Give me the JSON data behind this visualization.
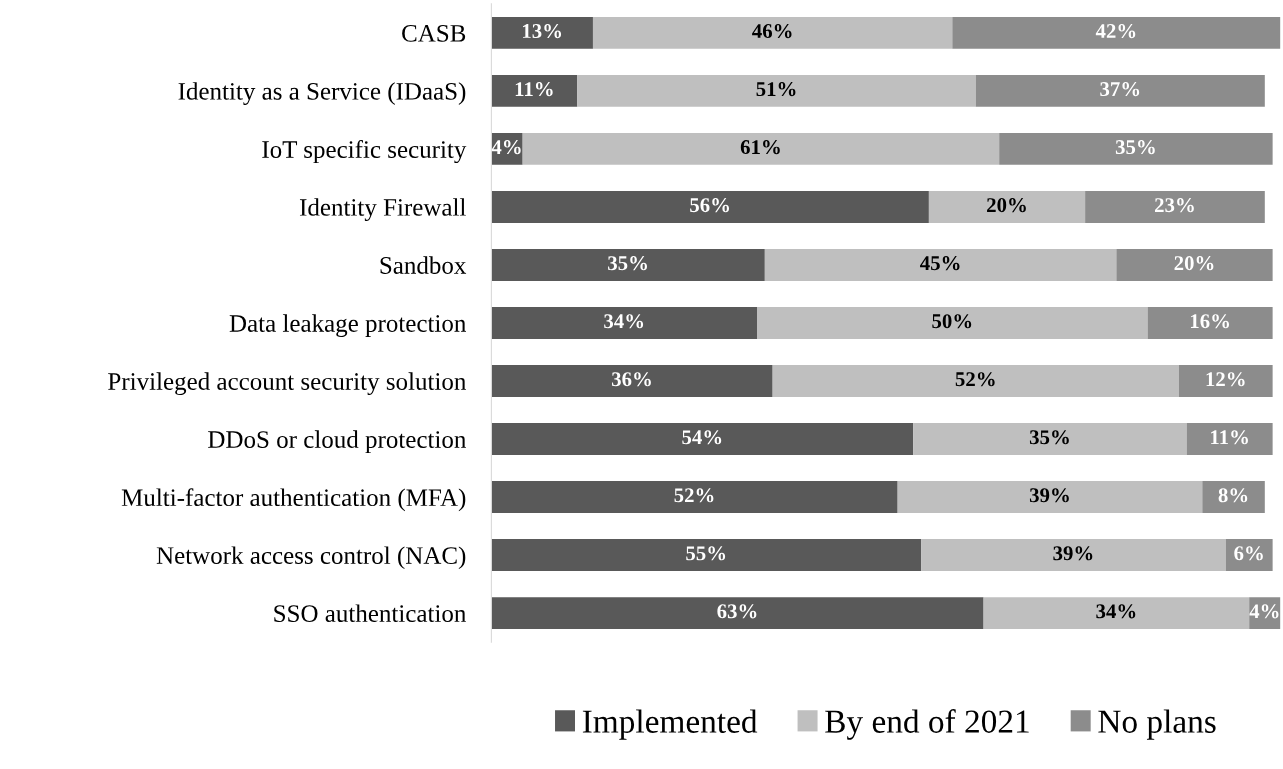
{
  "chart_data": {
    "type": "bar",
    "orientation": "horizontal",
    "stacked": true,
    "legend": "bottom",
    "grid": false,
    "tick_labels": "y",
    "categories": [
      "CASB",
      "Identity as a Service (IDaaS)",
      "IoT specific security",
      "Identity Firewall",
      "Sandbox",
      "Data leakage protection",
      "Privileged account security solution",
      "DDoS or cloud protection",
      "Multi-factor authentication (MFA)",
      "Network access control (NAC)",
      "SSO authentication"
    ],
    "series": [
      {
        "name": "Implemented",
        "color": "#595959",
        "values": [
          13,
          11,
          4,
          56,
          35,
          34,
          36,
          54,
          52,
          55,
          63
        ],
        "value_labels": [
          "13%",
          "11%",
          "4%",
          "56%",
          "35%",
          "34%",
          "36%",
          "54%",
          "52%",
          "55%",
          "63%"
        ]
      },
      {
        "name": "By end of 2021",
        "color": "#bfbfbf",
        "values": [
          46,
          51,
          61,
          20,
          45,
          50,
          52,
          35,
          39,
          39,
          34
        ],
        "value_labels": [
          "46%",
          "51%",
          "61%",
          "20%",
          "45%",
          "50%",
          "52%",
          "35%",
          "39%",
          "39%",
          "34%"
        ]
      },
      {
        "name": "No plans",
        "color": "#8c8c8c",
        "values": [
          42,
          37,
          35,
          23,
          20,
          16,
          12,
          11,
          8,
          6,
          4
        ],
        "value_labels": [
          "42%",
          "37%",
          "35%",
          "23%",
          "20%",
          "16%",
          "12%",
          "11%",
          "8%",
          "6%",
          "4%"
        ]
      }
    ]
  }
}
